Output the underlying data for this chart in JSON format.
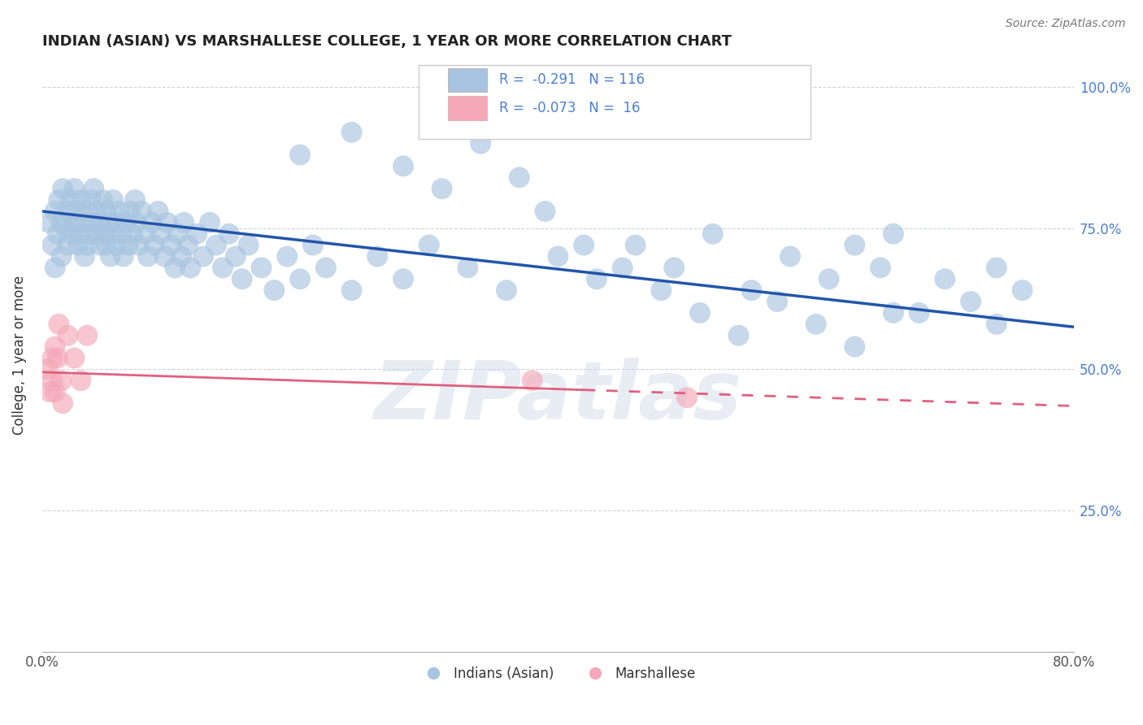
{
  "title": "INDIAN (ASIAN) VS MARSHALLESE COLLEGE, 1 YEAR OR MORE CORRELATION CHART",
  "source_text": "Source: ZipAtlas.com",
  "ylabel": "College, 1 year or more",
  "xlim": [
    0.0,
    0.8
  ],
  "ylim": [
    0.0,
    1.05
  ],
  "blue_color": "#a8c4e0",
  "blue_edge_color": "#7aabce",
  "pink_color": "#f4a8b8",
  "pink_edge_color": "#e87090",
  "blue_line_color": "#2255aa",
  "pink_line_color": "#e06080",
  "watermark": "ZIPatlas",
  "blue_trend_start": 0.78,
  "blue_trend_end": 0.575,
  "pink_trend_start": 0.495,
  "pink_trend_end": 0.435,
  "blue_x": [
    0.005,
    0.008,
    0.01,
    0.01,
    0.012,
    0.013,
    0.015,
    0.015,
    0.016,
    0.018,
    0.02,
    0.02,
    0.022,
    0.022,
    0.025,
    0.025,
    0.027,
    0.028,
    0.03,
    0.03,
    0.032,
    0.033,
    0.035,
    0.035,
    0.037,
    0.038,
    0.04,
    0.04,
    0.042,
    0.043,
    0.045,
    0.045,
    0.047,
    0.048,
    0.05,
    0.05,
    0.052,
    0.053,
    0.055,
    0.055,
    0.057,
    0.058,
    0.06,
    0.062,
    0.063,
    0.065,
    0.067,
    0.068,
    0.07,
    0.072,
    0.073,
    0.075,
    0.077,
    0.08,
    0.082,
    0.085,
    0.087,
    0.09,
    0.092,
    0.095,
    0.097,
    0.1,
    0.103,
    0.105,
    0.108,
    0.11,
    0.113,
    0.115,
    0.12,
    0.125,
    0.13,
    0.135,
    0.14,
    0.145,
    0.15,
    0.155,
    0.16,
    0.17,
    0.18,
    0.19,
    0.2,
    0.21,
    0.22,
    0.24,
    0.26,
    0.28,
    0.3,
    0.33,
    0.36,
    0.4,
    0.43,
    0.46,
    0.49,
    0.52,
    0.55,
    0.58,
    0.61,
    0.63,
    0.65,
    0.66,
    0.68,
    0.7,
    0.72,
    0.74,
    0.76,
    0.74,
    0.2,
    0.24,
    0.28,
    0.31,
    0.34,
    0.37,
    0.39,
    0.42,
    0.45,
    0.48,
    0.51,
    0.54,
    0.57,
    0.6,
    0.63,
    0.66
  ],
  "blue_y": [
    0.76,
    0.72,
    0.78,
    0.68,
    0.74,
    0.8,
    0.76,
    0.7,
    0.82,
    0.75,
    0.72,
    0.78,
    0.8,
    0.74,
    0.76,
    0.82,
    0.78,
    0.72,
    0.74,
    0.8,
    0.76,
    0.7,
    0.78,
    0.72,
    0.74,
    0.8,
    0.76,
    0.82,
    0.74,
    0.78,
    0.72,
    0.76,
    0.8,
    0.74,
    0.78,
    0.72,
    0.76,
    0.7,
    0.74,
    0.8,
    0.76,
    0.72,
    0.78,
    0.74,
    0.7,
    0.76,
    0.72,
    0.78,
    0.74,
    0.8,
    0.76,
    0.72,
    0.78,
    0.74,
    0.7,
    0.76,
    0.72,
    0.78,
    0.74,
    0.7,
    0.76,
    0.72,
    0.68,
    0.74,
    0.7,
    0.76,
    0.72,
    0.68,
    0.74,
    0.7,
    0.76,
    0.72,
    0.68,
    0.74,
    0.7,
    0.66,
    0.72,
    0.68,
    0.64,
    0.7,
    0.66,
    0.72,
    0.68,
    0.64,
    0.7,
    0.66,
    0.72,
    0.68,
    0.64,
    0.7,
    0.66,
    0.72,
    0.68,
    0.74,
    0.64,
    0.7,
    0.66,
    0.72,
    0.68,
    0.74,
    0.6,
    0.66,
    0.62,
    0.68,
    0.64,
    0.58,
    0.88,
    0.92,
    0.86,
    0.82,
    0.9,
    0.84,
    0.78,
    0.72,
    0.68,
    0.64,
    0.6,
    0.56,
    0.62,
    0.58,
    0.54,
    0.6
  ],
  "pink_x": [
    0.004,
    0.006,
    0.008,
    0.008,
    0.01,
    0.01,
    0.012,
    0.013,
    0.015,
    0.016,
    0.02,
    0.025,
    0.03,
    0.035,
    0.38,
    0.5
  ],
  "pink_y": [
    0.5,
    0.46,
    0.52,
    0.48,
    0.54,
    0.46,
    0.52,
    0.58,
    0.48,
    0.44,
    0.56,
    0.52,
    0.48,
    0.56,
    0.48,
    0.45
  ]
}
